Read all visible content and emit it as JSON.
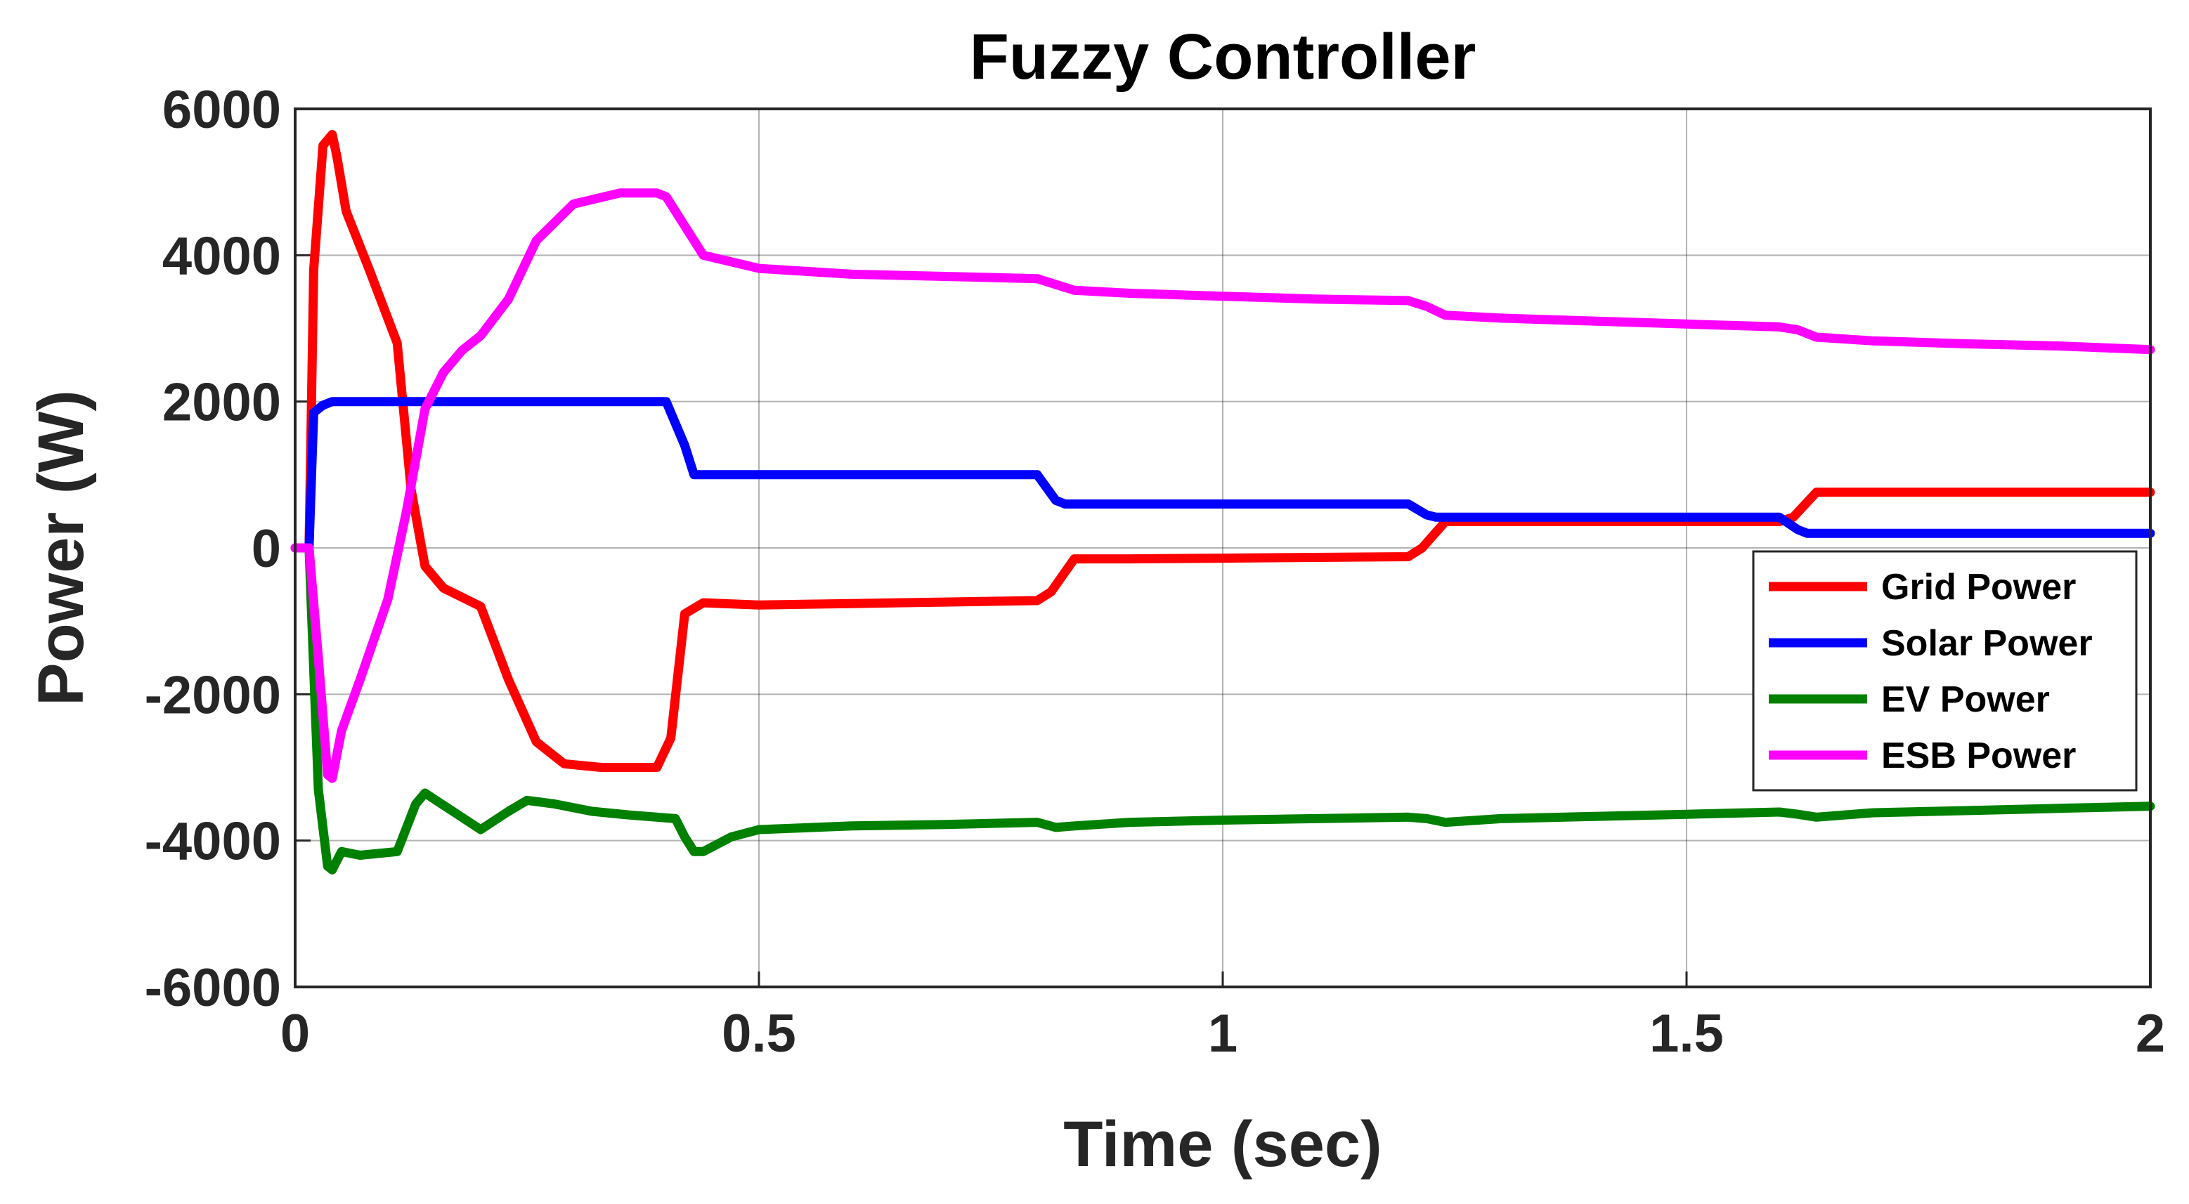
{
  "chart_data": {
    "type": "line",
    "title": "Fuzzy Controller",
    "xlabel": "Time (sec)",
    "ylabel": "Power (W)",
    "xlim": [
      0,
      2
    ],
    "ylim": [
      -6000,
      6000
    ],
    "xticks": [
      0,
      0.5,
      1,
      1.5,
      2
    ],
    "xtick_labels": [
      "0",
      "0.5",
      "1",
      "1.5",
      "2"
    ],
    "yticks": [
      6000,
      4000,
      2000,
      0,
      -2000,
      -4000,
      -6000
    ],
    "ytick_labels": [
      "6000",
      "4000",
      "2000",
      "0",
      "-2000",
      "-4000",
      "-6000"
    ],
    "grid": true,
    "legend_position": "right, below center",
    "series": [
      {
        "name": "Grid Power",
        "color": "#ff0000",
        "x": [
          0,
          0.015,
          0.02,
          0.03,
          0.04,
          0.045,
          0.055,
          0.08,
          0.11,
          0.125,
          0.14,
          0.16,
          0.2,
          0.23,
          0.26,
          0.29,
          0.33,
          0.39,
          0.405,
          0.42,
          0.44,
          0.5,
          0.6,
          0.7,
          0.8,
          0.815,
          0.84,
          0.9,
          1.0,
          1.1,
          1.2,
          1.215,
          1.24,
          1.3,
          1.4,
          1.5,
          1.6,
          1.615,
          1.64,
          1.7,
          1.8,
          1.9,
          2.0
        ],
        "y": [
          0,
          0,
          3800,
          5500,
          5650,
          5350,
          4600,
          3800,
          2800,
          800,
          -250,
          -550,
          -800,
          -1800,
          -2650,
          -2950,
          -3000,
          -3000,
          -2600,
          -900,
          -750,
          -780,
          -760,
          -740,
          -720,
          -600,
          -150,
          -150,
          -140,
          -130,
          -120,
          0,
          360,
          360,
          360,
          360,
          360,
          420,
          760,
          760,
          760,
          760,
          760
        ]
      },
      {
        "name": "Solar Power",
        "color": "#0000ff",
        "x": [
          0,
          0.015,
          0.02,
          0.03,
          0.04,
          0.06,
          0.1,
          0.2,
          0.3,
          0.4,
          0.42,
          0.43,
          0.5,
          0.6,
          0.7,
          0.8,
          0.82,
          0.83,
          0.9,
          1.0,
          1.1,
          1.2,
          1.22,
          1.23,
          1.3,
          1.4,
          1.5,
          1.6,
          1.62,
          1.63,
          1.7,
          1.8,
          1.9,
          2.0
        ],
        "y": [
          0,
          0,
          1850,
          1950,
          2000,
          2000,
          2000,
          2000,
          2000,
          2000,
          1400,
          1000,
          1000,
          1000,
          1000,
          1000,
          650,
          600,
          600,
          600,
          600,
          600,
          450,
          420,
          420,
          420,
          420,
          420,
          250,
          200,
          200,
          200,
          200,
          200
        ]
      },
      {
        "name": "EV Power",
        "color": "#008000",
        "x": [
          0,
          0.015,
          0.025,
          0.035,
          0.04,
          0.05,
          0.07,
          0.11,
          0.13,
          0.14,
          0.17,
          0.2,
          0.23,
          0.25,
          0.28,
          0.32,
          0.36,
          0.41,
          0.42,
          0.43,
          0.44,
          0.47,
          0.5,
          0.6,
          0.7,
          0.8,
          0.82,
          0.84,
          0.9,
          1.0,
          1.1,
          1.2,
          1.22,
          1.24,
          1.3,
          1.4,
          1.5,
          1.6,
          1.62,
          1.64,
          1.7,
          1.8,
          1.9,
          2.0
        ],
        "y": [
          0,
          0,
          -3300,
          -4350,
          -4400,
          -4150,
          -4200,
          -4150,
          -3500,
          -3350,
          -3600,
          -3850,
          -3600,
          -3450,
          -3500,
          -3600,
          -3650,
          -3700,
          -3950,
          -4150,
          -4150,
          -3950,
          -3850,
          -3800,
          -3780,
          -3750,
          -3820,
          -3800,
          -3750,
          -3720,
          -3700,
          -3680,
          -3700,
          -3750,
          -3700,
          -3670,
          -3640,
          -3610,
          -3640,
          -3680,
          -3620,
          -3590,
          -3560,
          -3530
        ]
      },
      {
        "name": "ESB Power",
        "color": "#ff00ff",
        "x": [
          0,
          0.015,
          0.025,
          0.035,
          0.04,
          0.05,
          0.07,
          0.1,
          0.12,
          0.14,
          0.16,
          0.18,
          0.2,
          0.23,
          0.26,
          0.3,
          0.35,
          0.39,
          0.4,
          0.42,
          0.44,
          0.5,
          0.6,
          0.7,
          0.8,
          0.82,
          0.84,
          0.9,
          1.0,
          1.1,
          1.2,
          1.22,
          1.24,
          1.3,
          1.4,
          1.5,
          1.6,
          1.62,
          1.64,
          1.7,
          1.8,
          1.9,
          2.0
        ],
        "y": [
          0,
          0,
          -1500,
          -3100,
          -3150,
          -2500,
          -1800,
          -700,
          500,
          1900,
          2400,
          2700,
          2900,
          3400,
          4200,
          4700,
          4850,
          4850,
          4800,
          4400,
          4000,
          3820,
          3740,
          3710,
          3680,
          3600,
          3520,
          3480,
          3440,
          3400,
          3380,
          3300,
          3180,
          3140,
          3100,
          3060,
          3020,
          2980,
          2880,
          2830,
          2790,
          2760,
          2710
        ]
      }
    ]
  }
}
